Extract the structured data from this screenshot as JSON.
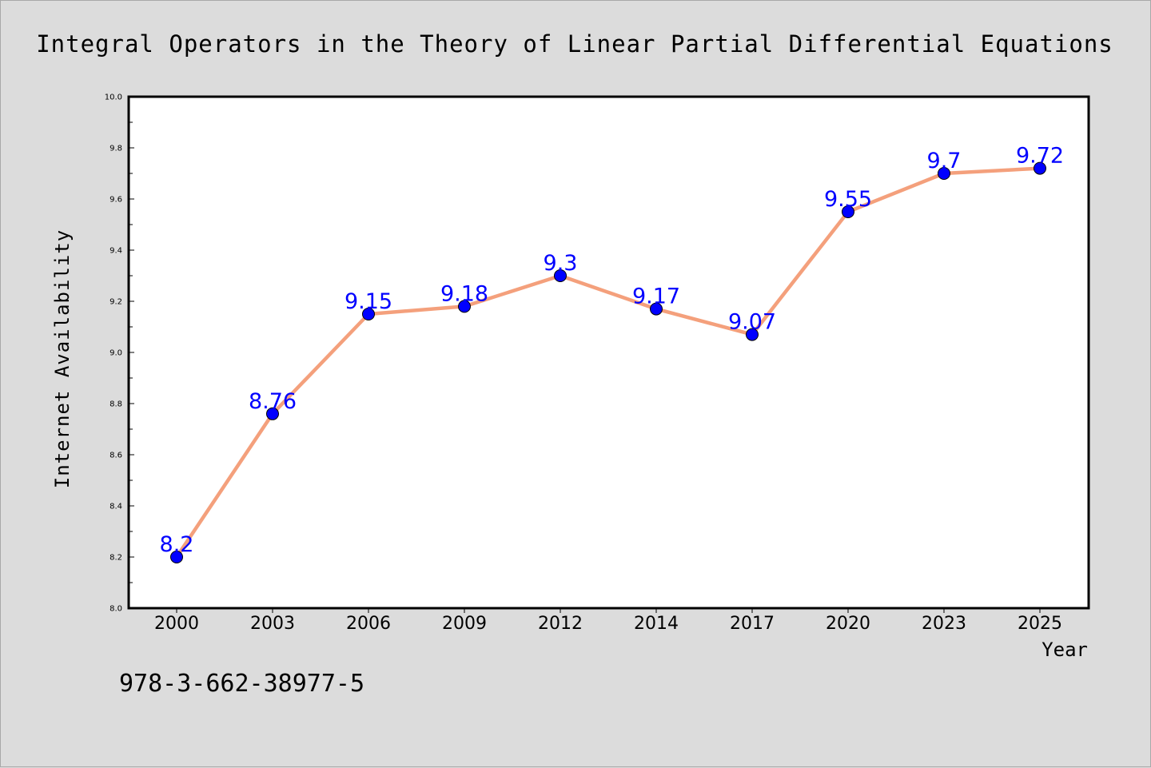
{
  "chart_data": {
    "type": "line",
    "title": "Integral Operators in the Theory of Linear Partial Differential Equations",
    "xlabel": "Year",
    "ylabel": "Internet Availability",
    "categories": [
      "2000",
      "2003",
      "2006",
      "2009",
      "2012",
      "2014",
      "2017",
      "2020",
      "2023",
      "2025"
    ],
    "series": [
      {
        "values": [
          8.2,
          8.76,
          9.15,
          9.18,
          9.3,
          9.17,
          9.07,
          9.55,
          9.7,
          9.72
        ],
        "data_labels": [
          "8.2",
          "8.76",
          "9.15",
          "9.18",
          "9.3",
          "9.17",
          "9.07",
          "9.55",
          "9.7",
          "9.72"
        ]
      }
    ],
    "ylim": [
      8.0,
      10.0
    ],
    "y_ticks": [
      "8.0",
      "8.2",
      "8.4",
      "8.6",
      "8.8",
      "9.0",
      "9.2",
      "9.4",
      "9.6",
      "9.8",
      "10.0"
    ],
    "grid": false,
    "legend": "none",
    "annotation": "978-3-662-38977-5",
    "colors": {
      "background": "#dcdcdc",
      "plot_background": "#ffffff",
      "line": "#f4a07c",
      "marker": "#0000ff",
      "data_label": "#0000ff"
    }
  }
}
